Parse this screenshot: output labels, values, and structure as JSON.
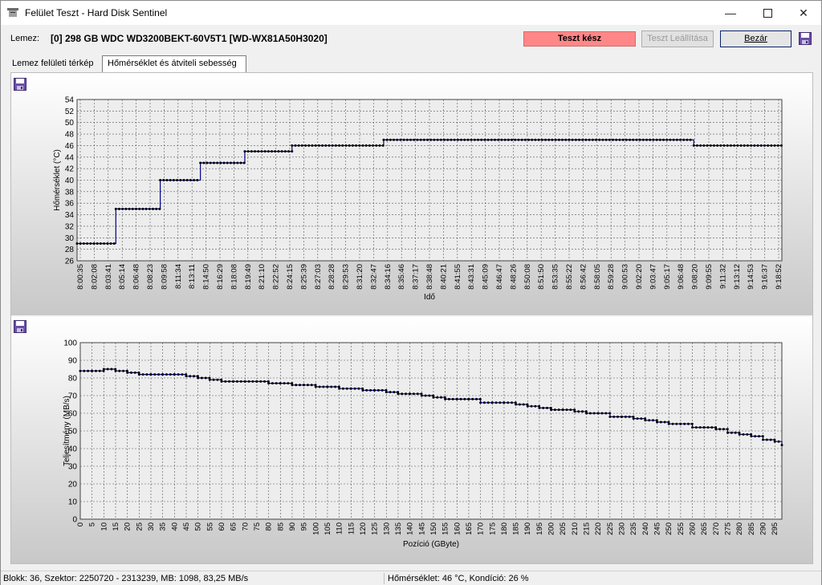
{
  "window": {
    "title": "Felület Teszt - Hard Disk Sentinel"
  },
  "disk": {
    "label": "Lemez:",
    "name": "[0] 298 GB  WDC WD3200BEKT-60V5T1 [WD-WX81A50H3020]"
  },
  "status": {
    "text": "Teszt kész",
    "color": "#ff8787"
  },
  "buttons": {
    "stop_label": "Teszt Leállítása",
    "close_label": "Bezár"
  },
  "tabs": [
    {
      "label": "Lemez felületi térkép",
      "active": false
    },
    {
      "label": "Hőmérséklet és átviteli sebesség",
      "active": true
    }
  ],
  "chart_data": [
    {
      "type": "line",
      "xlabel": "Idő",
      "ylabel": "Hőmérséklet (°C)",
      "ylim": [
        26,
        54
      ],
      "yticks": [
        26,
        28,
        30,
        32,
        34,
        36,
        38,
        40,
        42,
        44,
        46,
        48,
        50,
        52,
        54
      ],
      "grid": true,
      "color": "#00008b",
      "categories": [
        "8:00:35",
        "8:02:08",
        "8:03:41",
        "8:05:14",
        "8:06:48",
        "8:08:23",
        "8:09:58",
        "8:11:34",
        "8:13:11",
        "8:14:50",
        "8:16:29",
        "8:18:08",
        "8:19:49",
        "8:21:10",
        "8:22:52",
        "8:24:15",
        "8:25:39",
        "8:27:03",
        "8:28:28",
        "8:29:53",
        "8:31:20",
        "8:32:47",
        "8:34:16",
        "8:35:46",
        "8:37:17",
        "8:38:48",
        "8:40:21",
        "8:41:55",
        "8:43:31",
        "8:45:09",
        "8:46:47",
        "8:48:26",
        "8:50:08",
        "8:51:50",
        "8:53:35",
        "8:55:22",
        "8:56:42",
        "8:58:05",
        "8:59:28",
        "9:00:53",
        "9:02:20",
        "9:03:47",
        "9:05:17",
        "9:06:48",
        "9:08:20",
        "9:09:55",
        "9:11:32",
        "9:13:12",
        "9:14:53",
        "9:16:37",
        "9:18:52"
      ],
      "steps": [
        {
          "until": 0.055,
          "value": 29
        },
        {
          "until": 0.118,
          "value": 35
        },
        {
          "until": 0.175,
          "value": 40
        },
        {
          "until": 0.238,
          "value": 43
        },
        {
          "until": 0.305,
          "value": 45
        },
        {
          "until": 0.435,
          "value": 46
        },
        {
          "until": 0.875,
          "value": 47
        },
        {
          "until": 1.0,
          "value": 46
        }
      ]
    },
    {
      "type": "line",
      "xlabel": "Pozíció (GByte)",
      "ylabel": "Teljesítmény (MB/s)",
      "ylim": [
        0,
        100
      ],
      "yticks": [
        0,
        10,
        20,
        30,
        40,
        50,
        60,
        70,
        80,
        90,
        100
      ],
      "xlim": [
        0,
        298
      ],
      "xticks": [
        0,
        5,
        10,
        15,
        20,
        25,
        30,
        35,
        40,
        45,
        50,
        55,
        60,
        65,
        70,
        75,
        80,
        85,
        90,
        95,
        100,
        105,
        110,
        115,
        120,
        125,
        130,
        135,
        140,
        145,
        150,
        155,
        160,
        165,
        170,
        175,
        180,
        185,
        190,
        195,
        200,
        205,
        210,
        215,
        220,
        225,
        230,
        235,
        240,
        245,
        250,
        255,
        260,
        265,
        270,
        275,
        280,
        285,
        290,
        295
      ],
      "grid": true,
      "color": "#00008b",
      "x": [
        0,
        5,
        10,
        15,
        20,
        25,
        30,
        35,
        40,
        45,
        50,
        55,
        60,
        65,
        70,
        75,
        80,
        85,
        90,
        95,
        100,
        105,
        110,
        115,
        120,
        125,
        130,
        135,
        140,
        145,
        150,
        155,
        160,
        165,
        170,
        175,
        180,
        185,
        190,
        195,
        200,
        205,
        210,
        215,
        220,
        225,
        230,
        235,
        240,
        245,
        250,
        255,
        260,
        265,
        270,
        275,
        280,
        285,
        290,
        295,
        298
      ],
      "values": [
        84,
        84,
        85,
        84,
        83,
        82,
        82,
        82,
        82,
        81,
        80,
        79,
        78,
        78,
        78,
        78,
        77,
        77,
        76,
        76,
        75,
        75,
        74,
        74,
        73,
        73,
        72,
        71,
        71,
        70,
        69,
        68,
        68,
        68,
        66,
        66,
        66,
        65,
        64,
        63,
        62,
        62,
        61,
        60,
        60,
        58,
        58,
        57,
        56,
        55,
        54,
        54,
        52,
        52,
        51,
        49,
        48,
        47,
        45,
        44,
        42
      ]
    }
  ],
  "statusbar": {
    "left": "Blokk: 36, Szektor: 2250720 - 2313239, MB: 1098, 83,25 MB/s",
    "right": "Hőmérséklet: 46  °C,  Kondíció: 26 %"
  }
}
